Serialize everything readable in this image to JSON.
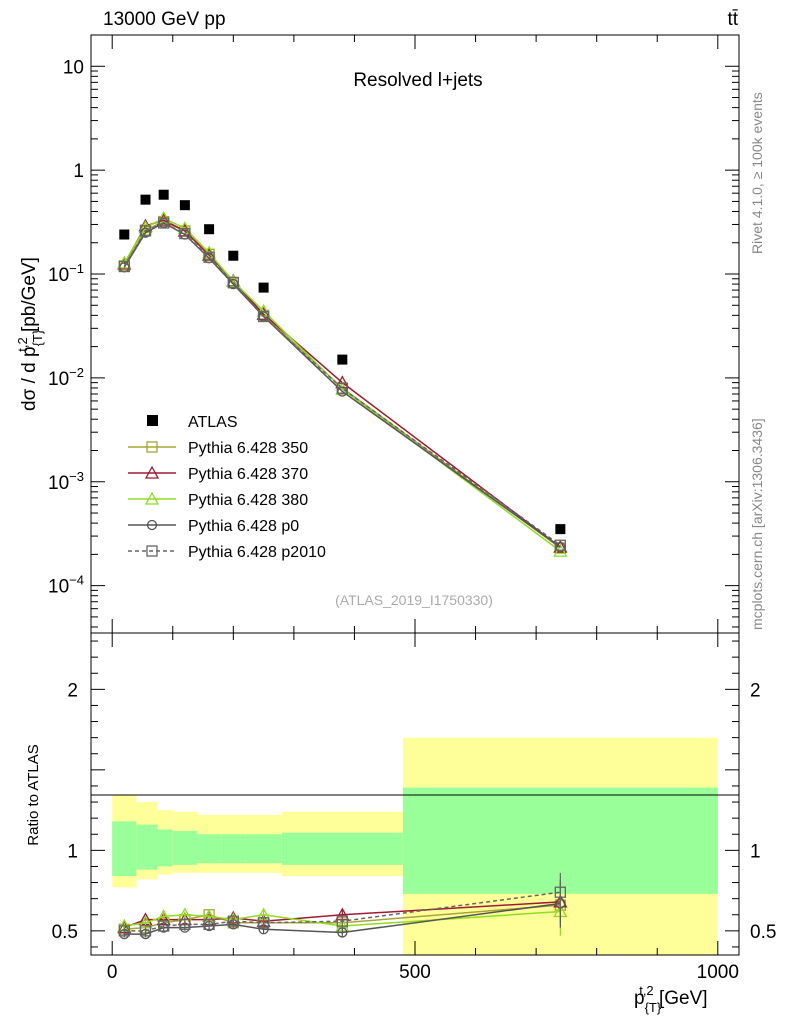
{
  "header": {
    "energy_label": "13000 GeV pp",
    "process_label": "tt̄",
    "rivet_label": "Rivet 4.1.0, ≥ 100k events",
    "source_label": "mcplots.cern.ch [arXiv:1306.3436]"
  },
  "chart_data": {
    "type": "line",
    "title": "Resolved l+jets",
    "analysis_id": "(ATLAS_2019_I1750330)",
    "ylabel": "dσ / d p_{T}^{t,2} [pb/GeV]",
    "ratio_ylabel": "Ratio to ATLAS",
    "xlabel": "p_{T}^{t,2} [GeV]",
    "xlim": [
      -35,
      1035
    ],
    "ylim": [
      3.5e-05,
      20
    ],
    "yscale": "log",
    "ratio_ylim": [
      0.35,
      2.35
    ],
    "x_ticks": [
      0,
      500,
      1000
    ],
    "y_ticks": [
      "10^{-4}",
      "10^{-3}",
      "10^{-2}",
      "10^{-1}",
      "1",
      "10"
    ],
    "ratio_ticks": [
      "0.5",
      "1",
      "2"
    ],
    "bins": [
      [
        0,
        40
      ],
      [
        40,
        75
      ],
      [
        75,
        100
      ],
      [
        100,
        140
      ],
      [
        140,
        180
      ],
      [
        180,
        220
      ],
      [
        220,
        280
      ],
      [
        280,
        480
      ],
      [
        480,
        1000
      ]
    ],
    "ratio_bands": {
      "inner": [
        [
          0.84,
          1.18
        ],
        [
          0.88,
          1.16
        ],
        [
          0.9,
          1.13
        ],
        [
          0.91,
          1.12
        ],
        [
          0.92,
          1.1
        ],
        [
          0.92,
          1.1
        ],
        [
          0.92,
          1.1
        ],
        [
          0.91,
          1.11
        ],
        [
          0.73,
          1.39
        ]
      ],
      "outer": [
        [
          0.77,
          1.34
        ],
        [
          0.82,
          1.3
        ],
        [
          0.85,
          1.25
        ],
        [
          0.86,
          1.24
        ],
        [
          0.86,
          1.22
        ],
        [
          0.86,
          1.22
        ],
        [
          0.86,
          1.22
        ],
        [
          0.84,
          1.24
        ],
        [
          0.32,
          1.7
        ]
      ],
      "inner_color": "#99ff99",
      "outer_color": "#ffff99"
    },
    "data": {
      "name": "ATLAS",
      "x": [
        20,
        55,
        85,
        120,
        160,
        200,
        250,
        380,
        740
      ],
      "y": [
        0.24,
        0.52,
        0.58,
        0.46,
        0.27,
        0.15,
        0.074,
        0.015,
        0.00035
      ],
      "color": "#000000"
    },
    "series": [
      {
        "name": "Pythia 6.428 350",
        "color": "#a6a637",
        "marker": "square",
        "dash": false,
        "x": [
          20,
          55,
          85,
          120,
          160,
          200,
          250,
          380,
          740
        ],
        "y": [
          0.12,
          0.265,
          0.32,
          0.26,
          0.155,
          0.082,
          0.04,
          0.008,
          0.00023
        ],
        "ratio": [
          0.51,
          0.52,
          0.55,
          0.57,
          0.6,
          0.55,
          0.55,
          0.55,
          0.66
        ]
      },
      {
        "name": "Pythia 6.428 370",
        "color": "#9e1b32",
        "marker": "triangle",
        "dash": false,
        "x": [
          20,
          55,
          85,
          120,
          160,
          200,
          250,
          380,
          740
        ],
        "y": [
          0.125,
          0.29,
          0.33,
          0.26,
          0.152,
          0.086,
          0.041,
          0.009,
          0.000235
        ],
        "ratio": [
          0.52,
          0.57,
          0.57,
          0.57,
          0.57,
          0.58,
          0.56,
          0.6,
          0.68
        ]
      },
      {
        "name": "Pythia 6.428 380",
        "color": "#8fdd1f",
        "marker": "triangle",
        "dash": false,
        "x": [
          20,
          55,
          85,
          120,
          160,
          200,
          250,
          380,
          740
        ],
        "y": [
          0.128,
          0.28,
          0.345,
          0.275,
          0.16,
          0.085,
          0.044,
          0.0078,
          0.000215
        ],
        "ratio": [
          0.53,
          0.55,
          0.59,
          0.6,
          0.59,
          0.57,
          0.6,
          0.53,
          0.62
        ]
      },
      {
        "name": "Pythia 6.428 p0",
        "color": "#555555",
        "marker": "circle",
        "dash": false,
        "x": [
          20,
          55,
          85,
          120,
          160,
          200,
          250,
          380,
          740
        ],
        "y": [
          0.116,
          0.25,
          0.31,
          0.24,
          0.142,
          0.08,
          0.039,
          0.0074,
          0.000235
        ],
        "ratio": [
          0.48,
          0.48,
          0.52,
          0.52,
          0.53,
          0.54,
          0.51,
          0.49,
          0.67
        ]
      },
      {
        "name": "Pythia 6.428 p2010",
        "color": "#666666",
        "marker": "square",
        "dash": true,
        "x": [
          20,
          55,
          85,
          120,
          160,
          200,
          250,
          380,
          740
        ],
        "y": [
          0.118,
          0.26,
          0.31,
          0.245,
          0.145,
          0.083,
          0.039,
          0.0079,
          0.000245
        ],
        "ratio": [
          0.5,
          0.5,
          0.53,
          0.54,
          0.54,
          0.56,
          0.55,
          0.56,
          0.74
        ]
      }
    ],
    "ratio_errors": [
      [
        0.02,
        0.02,
        0.02,
        0.02,
        0.02,
        0.02,
        0.03,
        0.03,
        0.12
      ],
      [
        0.02,
        0.02,
        0.02,
        0.02,
        0.02,
        0.02,
        0.03,
        0.03,
        0.12
      ],
      [
        0.02,
        0.02,
        0.02,
        0.02,
        0.02,
        0.02,
        0.03,
        0.03,
        0.15
      ],
      [
        0.02,
        0.02,
        0.02,
        0.02,
        0.02,
        0.02,
        0.03,
        0.03,
        0.15
      ],
      [
        0.02,
        0.02,
        0.02,
        0.02,
        0.02,
        0.02,
        0.03,
        0.03,
        0.12
      ]
    ]
  }
}
